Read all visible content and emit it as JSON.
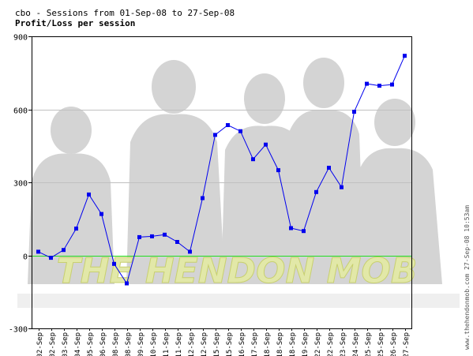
{
  "header": {
    "subtitle": "cbo - Sessions from 01-Sep-08 to 27-Sep-08",
    "title": "Profit/Loss per session"
  },
  "side_credit": "www.thehendonmob.com 27-Sep-08 10:53am",
  "watermark_text": "THE HENDON MOB",
  "colors": {
    "line": "#0000ee",
    "marker": "#0000ee",
    "zero_line": "#22dd22",
    "grid": "#c0c0c0",
    "axis": "#000000",
    "background": "#ffffff",
    "watermark_logo": "#e2e8a8"
  },
  "chart_data": {
    "type": "line",
    "title": "Profit/Loss per session",
    "subtitle": "cbo - Sessions from 01-Sep-08 to 27-Sep-08",
    "xlabel": "",
    "ylabel": "",
    "ylim": [
      -300,
      900
    ],
    "yticks": [
      900,
      600,
      300,
      0,
      -300
    ],
    "grid": true,
    "legend": "none",
    "categories": [
      "02-Sep",
      "02-Sep",
      "03-Sep",
      "04-Sep",
      "05-Sep",
      "06-Sep",
      "08-Sep",
      "08-Sep",
      "09-Sep",
      "10-Sep",
      "11-Sep",
      "11-Sep",
      "12-Sep",
      "12-Sep",
      "15-Sep",
      "15-Sep",
      "16-Sep",
      "17-Sep",
      "18-Sep",
      "18-Sep",
      "18-Sep",
      "19-Sep",
      "22-Sep",
      "22-Sep",
      "23-Sep",
      "24-Sep",
      "25-Sep",
      "25-Sep",
      "26-Sep",
      "27-Sep"
    ],
    "series": [
      {
        "values": [
          15,
          -10,
          22,
          110,
          250,
          170,
          -35,
          -115,
          75,
          78,
          85,
          55,
          15,
          235,
          495,
          535,
          510,
          395,
          455,
          350,
          112,
          100,
          260,
          360,
          280,
          590,
          705,
          697,
          702,
          820
        ]
      }
    ]
  }
}
